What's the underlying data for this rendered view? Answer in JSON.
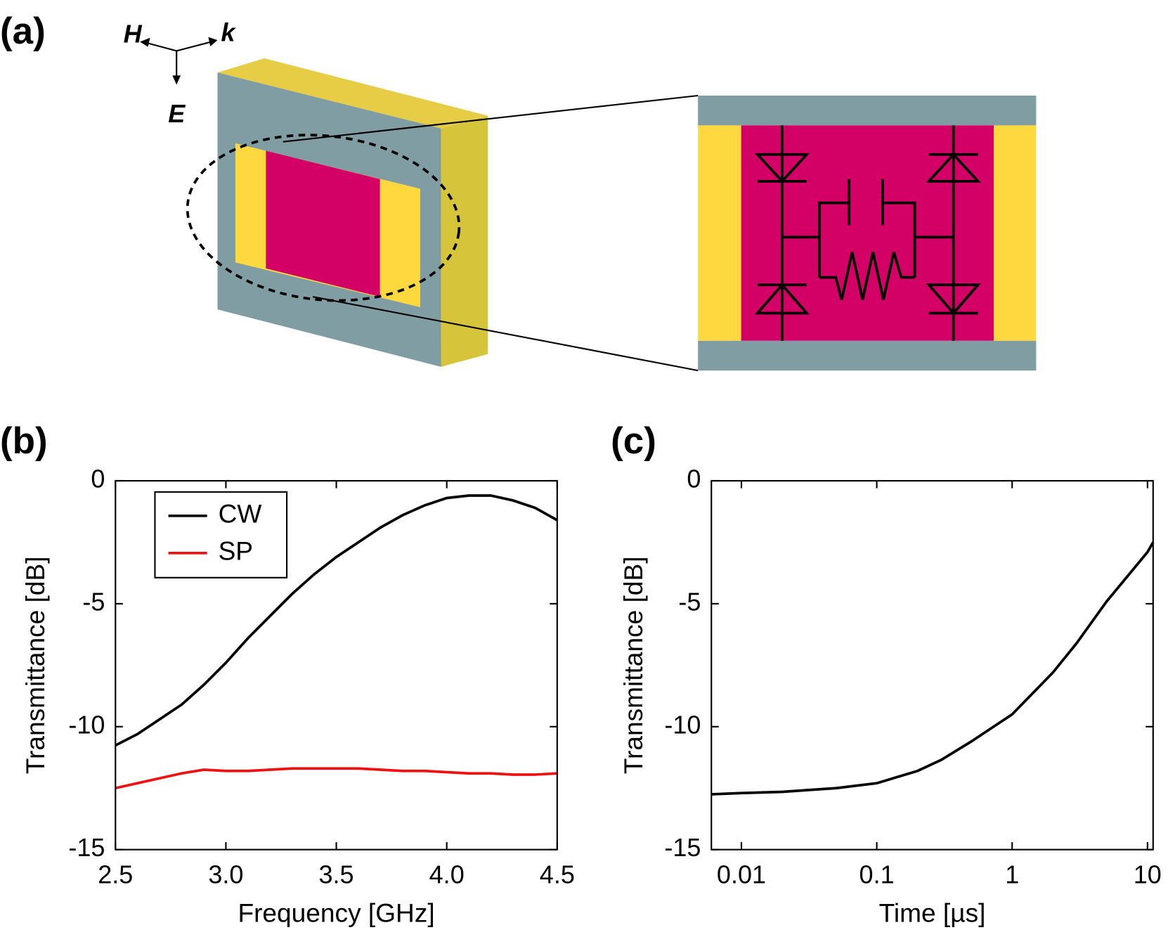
{
  "panel_labels": [
    "(a)",
    "(b)",
    "(c)"
  ],
  "diagram": {
    "vector_labels": [
      "H",
      "k",
      "E"
    ]
  },
  "chart_data": [
    {
      "type": "line",
      "xlabel": "Frequency [GHz]",
      "ylabel": "Transmittance [dB]",
      "x": [
        2.5,
        2.6,
        2.7,
        2.8,
        2.9,
        3.0,
        3.1,
        3.2,
        3.3,
        3.4,
        3.5,
        3.6,
        3.7,
        3.8,
        3.9,
        4.0,
        4.1,
        4.2,
        4.3,
        4.4,
        4.5
      ],
      "series": [
        {
          "name": "CW",
          "color": "#000000",
          "values": [
            -10.76,
            -10.3,
            -9.7,
            -9.1,
            -8.3,
            -7.4,
            -6.4,
            -5.5,
            -4.6,
            -3.8,
            -3.1,
            -2.5,
            -1.9,
            -1.4,
            -1.0,
            -0.7,
            -0.6,
            -0.6,
            -0.8,
            -1.1,
            -1.6
          ]
        },
        {
          "name": "SP",
          "color": "#ee1111",
          "values": [
            -12.5,
            -12.3,
            -12.1,
            -11.9,
            -11.75,
            -11.8,
            -11.8,
            -11.75,
            -11.7,
            -11.7,
            -11.7,
            -11.7,
            -11.75,
            -11.8,
            -11.8,
            -11.85,
            -11.9,
            -11.9,
            -11.95,
            -11.95,
            -11.9
          ]
        }
      ],
      "xlim": [
        2.5,
        4.5
      ],
      "xticks": [
        2.5,
        {
          "value": 3,
          "label": "3.0"
        },
        3.5,
        {
          "value": 4,
          "label": "4.0"
        },
        4.5
      ],
      "ylim": [
        -15,
        0
      ],
      "yticks": [
        0,
        -5,
        -10,
        -15
      ],
      "legend": "upper left"
    },
    {
      "type": "line",
      "xlabel": "Time [µs]",
      "ylabel": "Transmittance [dB]",
      "xscale": "log",
      "x": [
        0.006,
        0.01,
        0.02,
        0.05,
        0.1,
        0.2,
        0.3,
        0.5,
        1,
        2,
        3,
        5,
        10,
        11
      ],
      "series": [
        {
          "color": "#000000",
          "values": [
            -12.75,
            -12.7,
            -12.65,
            -12.5,
            -12.3,
            -11.8,
            -11.35,
            -10.6,
            -9.5,
            -7.8,
            -6.6,
            -4.9,
            -2.9,
            -2.5
          ]
        }
      ],
      "xlim": [
        0.006,
        11
      ],
      "xticks": [
        0.01,
        0.1,
        1,
        10
      ],
      "ylim": [
        -15,
        0
      ],
      "yticks": [
        0,
        -5,
        -10,
        -15
      ]
    }
  ]
}
